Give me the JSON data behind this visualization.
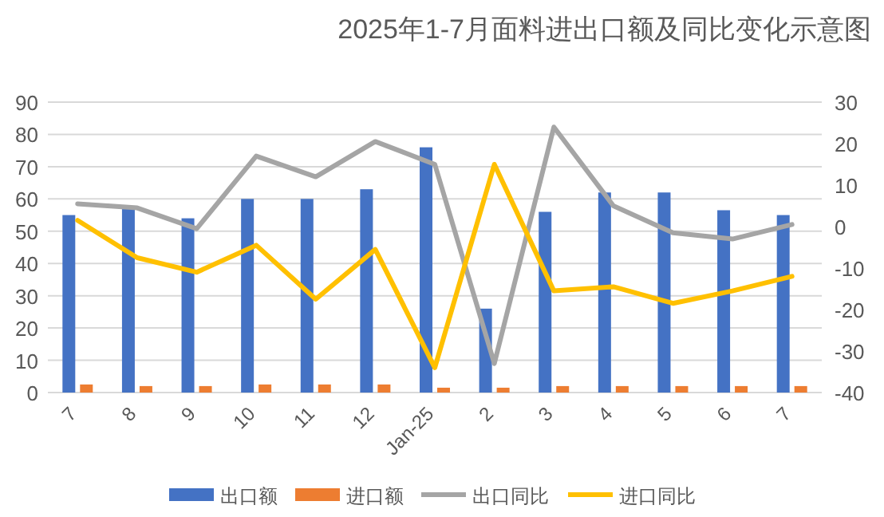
{
  "chart_data": {
    "type": "bar",
    "title": "2025年1-7月面料进出口额及同比变化示意图",
    "categories": [
      "7",
      "8",
      "9",
      "10",
      "11",
      "12",
      "Jan-25",
      "2",
      "3",
      "4",
      "5",
      "6",
      "7"
    ],
    "series": [
      {
        "name": "出口额",
        "color": "#4472c4",
        "values": [
          55,
          57.5,
          54,
          60,
          60,
          63,
          76,
          26,
          56,
          62,
          62,
          56.5,
          55
        ]
      },
      {
        "name": "进口额",
        "color": "#ed7d31",
        "values": [
          2.5,
          2,
          2,
          2.5,
          2.5,
          2.5,
          1.5,
          1.5,
          2,
          2,
          2,
          2,
          2
        ]
      },
      {
        "name": "出口同比",
        "type": "line",
        "axis": "y2",
        "color": "#a5a5a5",
        "values": [
          5.5,
          4.5,
          -0.5,
          17,
          12,
          20.5,
          15,
          -33,
          24,
          5,
          -1.5,
          -3,
          0.5
        ]
      },
      {
        "name": "进口同比",
        "type": "line",
        "axis": "y2",
        "color": "#ffc000",
        "values": [
          1.5,
          -7.5,
          -11,
          -4.5,
          -17.5,
          -5.5,
          -34,
          15,
          -15.5,
          -14.5,
          -18.5,
          -15.5,
          -12
        ]
      }
    ],
    "ylim": [
      0,
      90
    ],
    "yticks": [
      0,
      10,
      20,
      30,
      40,
      50,
      60,
      70,
      80,
      90
    ],
    "y2lim": [
      -40,
      30
    ],
    "y2ticks": [
      -40,
      -30,
      -20,
      -10,
      0,
      10,
      20,
      30
    ],
    "grid": "y",
    "legend": "bottom"
  }
}
